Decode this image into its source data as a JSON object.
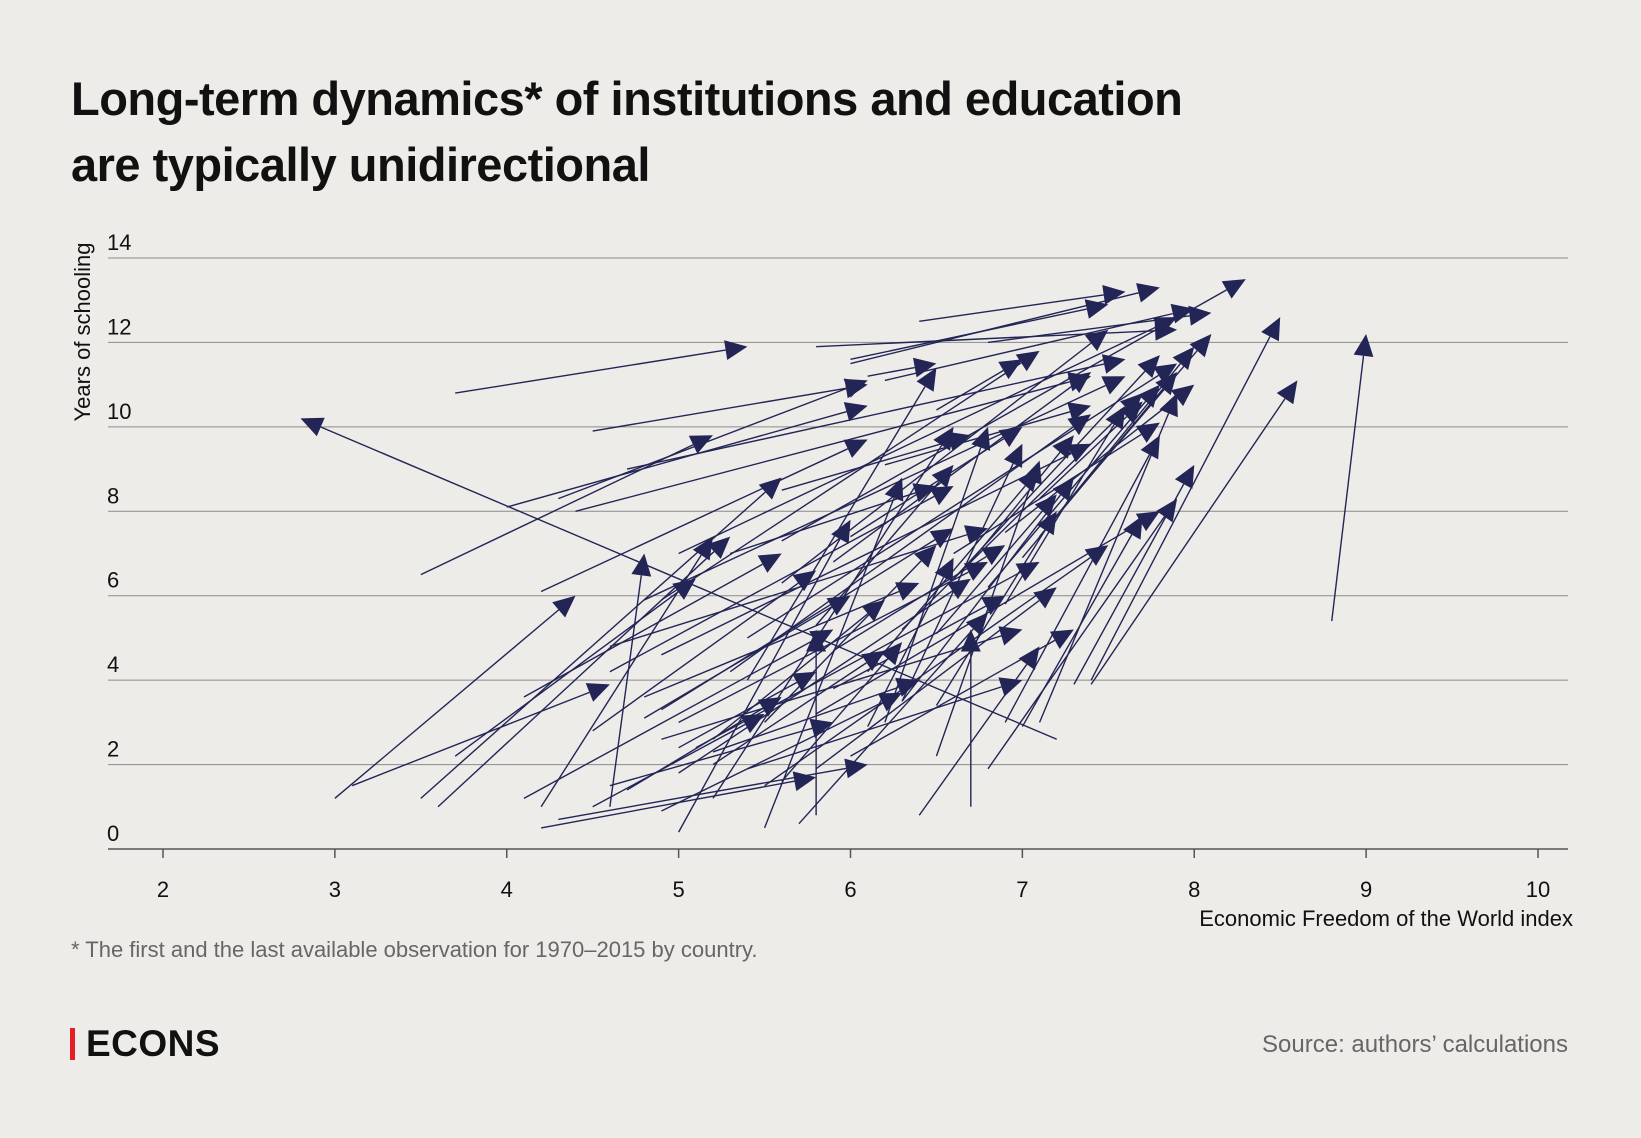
{
  "title_lines": [
    "Long-term dynamics* of institutions and education",
    "are typically unidirectional"
  ],
  "footnote": "* The first and the last available observation for 1970–2015 by country.",
  "brand": {
    "name": "ECONS",
    "accent_color": "#e41e26"
  },
  "source": "Source: authors’ calculations",
  "chart_data": {
    "type": "scatter",
    "style": "arrows from first to last observation",
    "xlabel": "Economic Freedom of the World index",
    "ylabel": "Years of schooling",
    "xlim": [
      2,
      10
    ],
    "ylim": [
      0,
      14
    ],
    "x_ticks": [
      "2",
      "3",
      "4",
      "5",
      "6",
      "7",
      "8",
      "9",
      "10"
    ],
    "y_ticks": [
      "0",
      "2",
      "4",
      "6",
      "8",
      "10",
      "12",
      "14"
    ],
    "grid": "horizontal",
    "arrow_color": "#232556",
    "arrows": [
      [
        3.7,
        10.8,
        5.4,
        11.9
      ],
      [
        7.2,
        2.6,
        2.8,
        10.2
      ],
      [
        8.8,
        5.4,
        9.0,
        12.2
      ],
      [
        7.4,
        3.9,
        8.6,
        11.1
      ],
      [
        6.7,
        1.0,
        6.7,
        5.2
      ],
      [
        4.6,
        1.0,
        4.8,
        7.0
      ],
      [
        3.0,
        1.2,
        4.4,
        6.0
      ],
      [
        3.5,
        1.2,
        5.6,
        8.8
      ],
      [
        3.6,
        1.0,
        5.3,
        7.4
      ],
      [
        3.5,
        6.5,
        5.2,
        9.8
      ],
      [
        4.2,
        0.5,
        5.8,
        1.7
      ],
      [
        4.3,
        0.7,
        6.1,
        2.0
      ],
      [
        3.1,
        1.5,
        4.6,
        3.9
      ],
      [
        4.5,
        1.0,
        5.5,
        3.2
      ],
      [
        4.7,
        1.4,
        5.6,
        3.6
      ],
      [
        4.1,
        1.2,
        5.9,
        5.2
      ],
      [
        4.2,
        1.0,
        5.2,
        7.4
      ],
      [
        5.0,
        0.4,
        6.0,
        7.8
      ],
      [
        5.5,
        0.5,
        6.3,
        8.8
      ],
      [
        5.2,
        1.2,
        6.6,
        10.0
      ],
      [
        5.7,
        0.6,
        6.8,
        5.6
      ],
      [
        5.8,
        0.8,
        5.8,
        5.2
      ],
      [
        6.0,
        2.2,
        7.3,
        5.2
      ],
      [
        6.5,
        2.2,
        7.1,
        9.2
      ],
      [
        6.9,
        3.0,
        7.8,
        9.8
      ],
      [
        7.1,
        3.0,
        7.9,
        10.8
      ],
      [
        7.4,
        4.0,
        8.5,
        12.6
      ],
      [
        6.2,
        3.0,
        6.8,
        10.0
      ],
      [
        6.5,
        3.4,
        7.2,
        8.0
      ],
      [
        6.3,
        3.5,
        7.0,
        9.6
      ],
      [
        4.9,
        5.9,
        7.1,
        11.8
      ],
      [
        5.6,
        6.3,
        7.5,
        12.3
      ],
      [
        4.6,
        4.8,
        6.8,
        7.6
      ],
      [
        4.2,
        6.1,
        6.1,
        9.7
      ],
      [
        4.0,
        8.1,
        6.1,
        10.5
      ],
      [
        4.3,
        8.3,
        6.1,
        11.1
      ],
      [
        4.9,
        4.6,
        7.4,
        9.6
      ],
      [
        4.8,
        5.9,
        7.6,
        11.2
      ],
      [
        4.8,
        3.6,
        6.4,
        6.3
      ],
      [
        5.0,
        3.0,
        6.8,
        6.8
      ],
      [
        4.6,
        4.2,
        6.6,
        8.6
      ],
      [
        6.0,
        11.5,
        7.8,
        13.3
      ],
      [
        6.4,
        12.5,
        7.6,
        13.2
      ],
      [
        6.2,
        11.1,
        8.0,
        12.8
      ],
      [
        6.0,
        11.6,
        7.5,
        12.9
      ],
      [
        5.8,
        11.9,
        7.9,
        12.3
      ],
      [
        6.8,
        12.0,
        8.1,
        12.7
      ],
      [
        4.4,
        8.0,
        7.4,
        11.2
      ],
      [
        4.7,
        9.0,
        7.6,
        11.6
      ],
      [
        4.5,
        9.9,
        6.1,
        11.0
      ],
      [
        5.0,
        7.0,
        7.9,
        12.6
      ],
      [
        5.6,
        7.3,
        8.3,
        13.5
      ],
      [
        5.4,
        5.0,
        7.9,
        11.5
      ],
      [
        5.3,
        4.2,
        7.4,
        10.3
      ],
      [
        4.9,
        3.3,
        6.6,
        7.6
      ],
      [
        5.2,
        2.3,
        6.4,
        4.0
      ],
      [
        4.9,
        2.6,
        7.0,
        5.2
      ],
      [
        5.1,
        2.4,
        7.1,
        6.8
      ],
      [
        5.5,
        1.5,
        7.5,
        7.2
      ],
      [
        5.8,
        1.9,
        7.2,
        6.2
      ],
      [
        5.8,
        3.2,
        7.8,
        8.0
      ],
      [
        5.6,
        1.6,
        6.3,
        4.9
      ],
      [
        5.2,
        2.0,
        6.2,
        4.7
      ],
      [
        5.0,
        2.4,
        5.8,
        4.2
      ],
      [
        6.4,
        0.8,
        7.1,
        4.8
      ],
      [
        6.8,
        1.9,
        7.9,
        8.3
      ],
      [
        7.0,
        2.9,
        7.7,
        7.9
      ],
      [
        7.3,
        3.9,
        8.0,
        9.1
      ],
      [
        6.1,
        2.9,
        6.6,
        6.9
      ],
      [
        6.3,
        3.5,
        7.3,
        8.8
      ],
      [
        5.8,
        5.3,
        6.6,
        9.1
      ],
      [
        6.9,
        5.8,
        7.6,
        10.5
      ],
      [
        6.6,
        6.4,
        7.8,
        11.7
      ],
      [
        7.0,
        6.9,
        7.9,
        11.3
      ],
      [
        7.1,
        7.4,
        8.0,
        11.9
      ],
      [
        7.2,
        7.9,
        8.1,
        12.2
      ],
      [
        6.8,
        6.2,
        7.8,
        11.0
      ],
      [
        6.5,
        5.1,
        7.2,
        8.4
      ],
      [
        6.7,
        6.8,
        7.3,
        9.8
      ],
      [
        5.5,
        3.0,
        6.5,
        7.2
      ],
      [
        5.9,
        4.7,
        6.9,
        7.2
      ],
      [
        6.1,
        4.2,
        7.1,
        9.0
      ],
      [
        5.9,
        6.8,
        7.4,
        11.3
      ],
      [
        6.5,
        10.4,
        7.0,
        11.6
      ],
      [
        6.2,
        9.1,
        7.4,
        10.5
      ],
      [
        5.3,
        7.0,
        6.5,
        8.6
      ],
      [
        5.6,
        8.5,
        6.7,
        9.8
      ],
      [
        6.1,
        11.2,
        6.5,
        11.5
      ],
      [
        6.0,
        7.4,
        7.0,
        10.0
      ],
      [
        5.4,
        4.0,
        6.5,
        11.4
      ],
      [
        5.0,
        1.8,
        6.7,
        6.4
      ],
      [
        4.5,
        2.8,
        5.8,
        6.6
      ],
      [
        4.1,
        3.6,
        5.6,
        7.0
      ],
      [
        3.7,
        2.2,
        5.1,
        6.4
      ],
      [
        4.9,
        0.9,
        6.3,
        3.7
      ],
      [
        4.6,
        1.5,
        5.9,
        3.0
      ],
      [
        5.4,
        1.9,
        7.0,
        4.0
      ],
      [
        6.3,
        5.2,
        7.7,
        10.8
      ],
      [
        6.6,
        7.0,
        7.8,
        10.1
      ],
      [
        7.1,
        8.3,
        7.7,
        10.6
      ],
      [
        6.9,
        7.5,
        8.0,
        11.0
      ],
      [
        5.9,
        3.8,
        6.9,
        6.0
      ],
      [
        5.2,
        2.6,
        6.2,
        5.9
      ],
      [
        4.8,
        3.1,
        6.0,
        6.0
      ]
    ]
  }
}
